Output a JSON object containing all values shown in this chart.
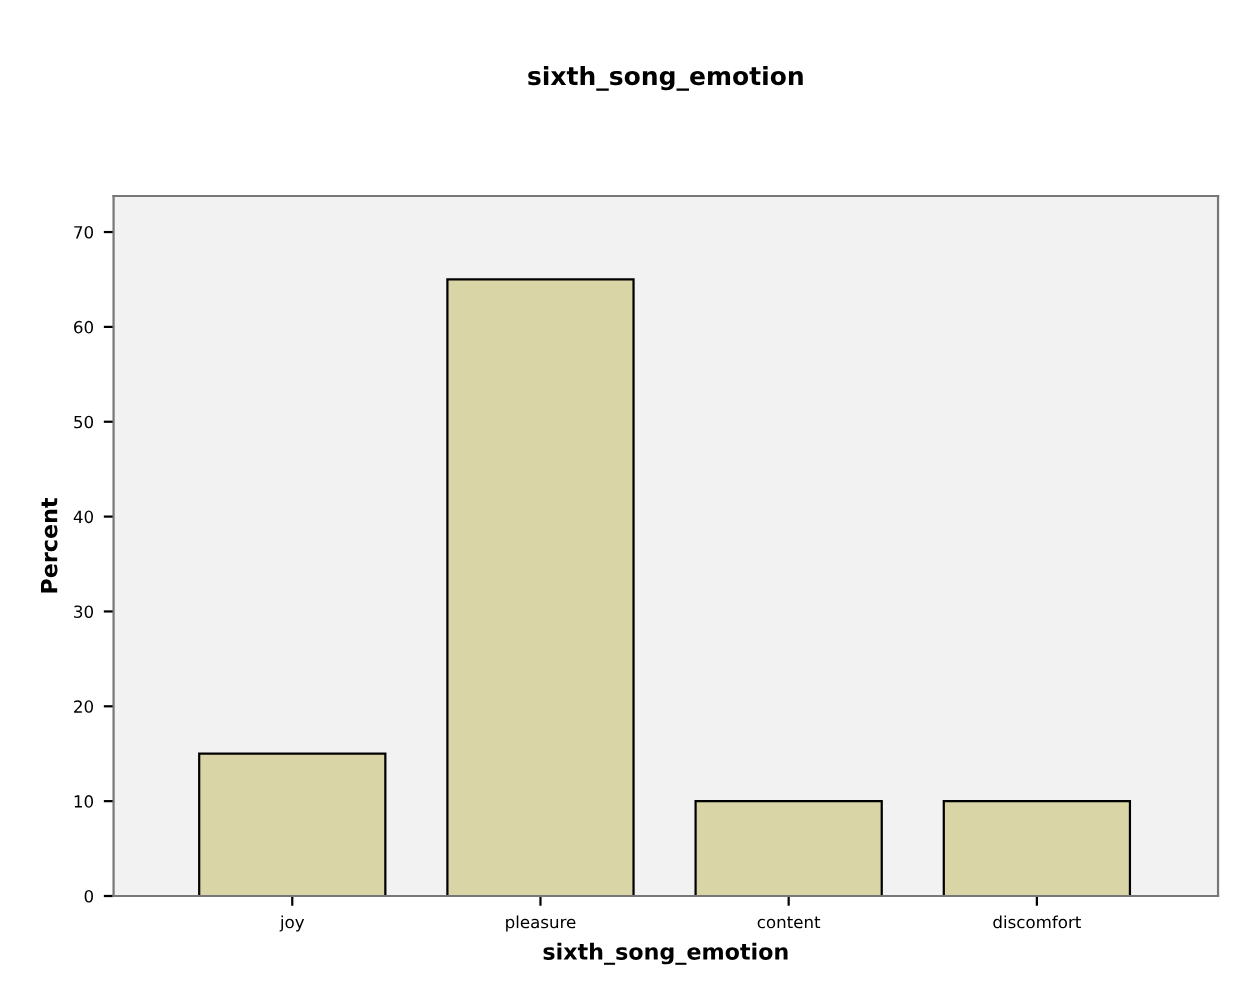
{
  "chart_data": {
    "type": "bar",
    "title": "sixth_song_emotion",
    "xlabel": "sixth_song_emotion",
    "ylabel": "Percent",
    "categories": [
      "joy",
      "pleasure",
      "content",
      "discomfort"
    ],
    "values": [
      15,
      65,
      10,
      10
    ],
    "color": "#d9d5a7",
    "ylim": [
      0,
      73.8
    ],
    "yticks": [
      0,
      10,
      20,
      30,
      40,
      50,
      60,
      70
    ],
    "grid": false
  }
}
